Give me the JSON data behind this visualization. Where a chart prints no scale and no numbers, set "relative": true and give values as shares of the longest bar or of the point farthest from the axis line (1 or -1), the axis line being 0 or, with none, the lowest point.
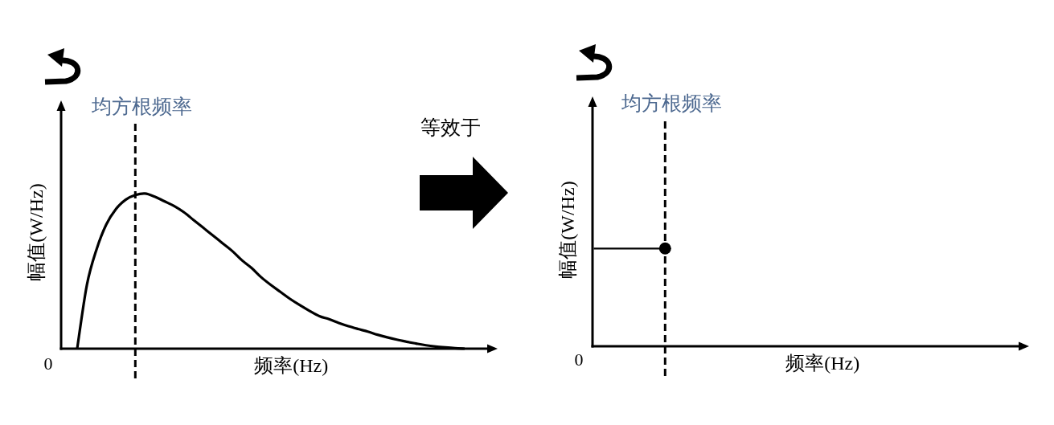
{
  "chart_data": [
    {
      "type": "line",
      "xlabel": "频率(Hz)",
      "ylabel": "幅值(W/Hz)",
      "relative": true,
      "categories": [
        null,
        null,
        null,
        null,
        null,
        null,
        null,
        null,
        null,
        null,
        null,
        null,
        null,
        null,
        null,
        null,
        null,
        null,
        null,
        null,
        null,
        null,
        null,
        null,
        null,
        null,
        null,
        null,
        null,
        null,
        null,
        null,
        null,
        null,
        null,
        null,
        null,
        null,
        null,
        null,
        null
      ],
      "series": [
        {
          "color": "#000000",
          "values": [
            0,
            0.41,
            0.64,
            0.8,
            0.9,
            0.96,
            0.99,
            1,
            0.98,
            0.95,
            0.92,
            0.88,
            0.83,
            0.78,
            0.73,
            0.68,
            0.63,
            0.57,
            0.52,
            0.46,
            0.41,
            0.365,
            0.32,
            0.28,
            0.243,
            0.21,
            0.19,
            0.166,
            0.145,
            0.127,
            0.11,
            0.09,
            0.073,
            0.058,
            0.045,
            0.033,
            0.022,
            0.014,
            0.008,
            0.003,
            0
          ]
        }
      ],
      "annotations": [
        "均方根频率",
        "等效于",
        "0"
      ]
    },
    {
      "type": "other",
      "xlabel": "频率(Hz)",
      "ylabel": "幅值(W/Hz)",
      "annotations": [
        "均方根频率",
        "0"
      ]
    }
  ]
}
